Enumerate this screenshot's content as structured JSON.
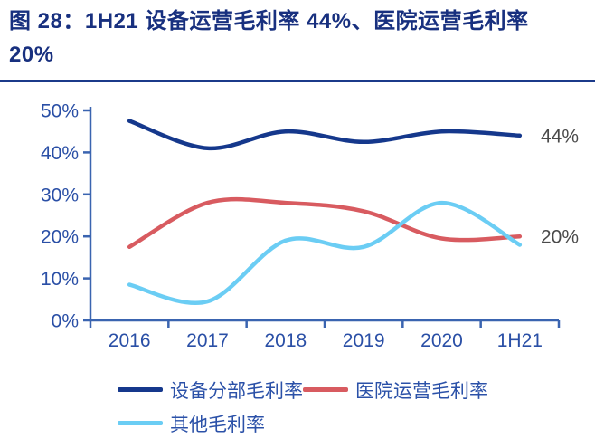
{
  "figure": {
    "title": "图 28：1H21 设备运营毛利率 44%、医院运营毛利率 20%"
  },
  "chart_data": {
    "type": "line",
    "categories": [
      "2016",
      "2017",
      "2018",
      "2019",
      "2020",
      "1H21"
    ],
    "series": [
      {
        "name": "设备分部毛利率",
        "color": "#15388c",
        "values": [
          47.5,
          41,
          45,
          42.5,
          45,
          44
        ]
      },
      {
        "name": "医院运营毛利率",
        "color": "#d85b60",
        "values": [
          17.5,
          28,
          28,
          26,
          19.5,
          20
        ]
      },
      {
        "name": "其他毛利率",
        "color": "#6bcdf4",
        "values": [
          8.5,
          4.5,
          19,
          17.5,
          28,
          18
        ]
      }
    ],
    "ylim": [
      0,
      50
    ],
    "yticks": [
      "0%",
      "10%",
      "20%",
      "30%",
      "40%",
      "50%"
    ],
    "end_labels": [
      {
        "text": "44%",
        "series": 0
      },
      {
        "text": "20%",
        "series": 1
      }
    ],
    "title": "",
    "xlabel": "",
    "ylabel": "",
    "grid": false,
    "legend_position": "bottom",
    "axis_color": "#3a64b0",
    "tick_label_color": "#2a4fa6",
    "end_label_color": "#4a4a4a"
  }
}
